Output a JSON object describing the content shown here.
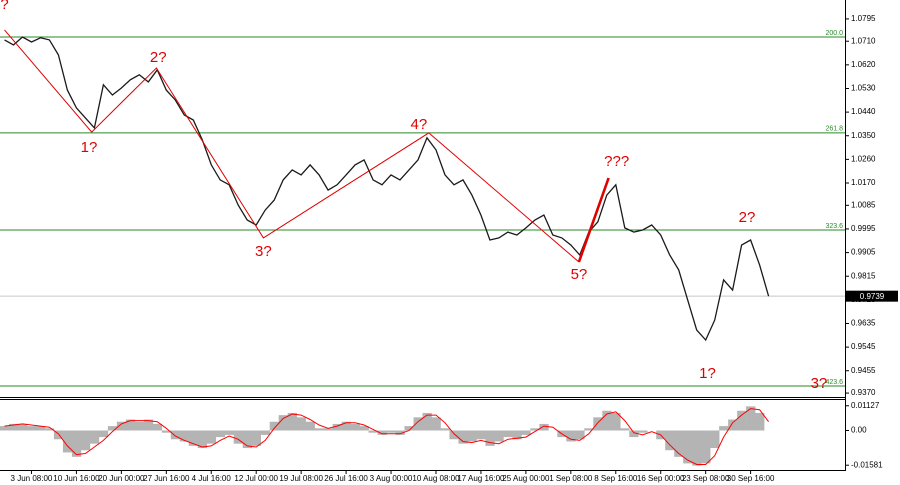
{
  "chart_data": [
    {
      "type": "line",
      "color": "#1a1a1a",
      "categories": [
        null,
        null,
        null,
        "3 Jun 08:00",
        null,
        null,
        null,
        null,
        "10 Jun 16:00",
        null,
        null,
        null,
        null,
        "20 Jun 00:00",
        null,
        null,
        null,
        null,
        "27 Jun 16:00",
        null,
        null,
        null,
        null,
        "4 Jul 16:00",
        null,
        null,
        null,
        null,
        "12 Jul 00:00",
        null,
        null,
        null,
        null,
        "19 Jul 08:00",
        null,
        null,
        null,
        null,
        "26 Jul 16:00",
        null,
        null,
        null,
        null,
        "3 Aug 00:00",
        null,
        null,
        null,
        null,
        "10 Aug 08:00",
        null,
        null,
        null,
        null,
        "17 Aug 16:00",
        null,
        null,
        null,
        null,
        "25 Aug 00:00",
        null,
        null,
        null,
        null,
        "1 Sep 08:00",
        null,
        null,
        null,
        null,
        "8 Sep 16:00",
        null,
        null,
        null,
        null,
        "16 Sep 00:00",
        null,
        null,
        null,
        null,
        "23 Sep 08:00",
        null,
        null,
        null,
        null,
        "30 Sep 16:00",
        null,
        null
      ],
      "values": [
        1.0715,
        1.0696,
        1.0726,
        1.0707,
        1.0723,
        1.0715,
        1.0658,
        1.0524,
        1.0456,
        1.0418,
        1.038,
        1.0544,
        1.0505,
        1.0532,
        1.0563,
        1.0582,
        1.0555,
        1.0601,
        1.0524,
        1.0486,
        1.0429,
        1.041,
        1.0334,
        1.0239,
        1.0182,
        1.0163,
        1.0086,
        1.0029,
        1.001,
        1.0067,
        1.0105,
        1.0182,
        1.022,
        1.0201,
        1.0239,
        1.0201,
        1.0143,
        1.0163,
        1.0201,
        1.0239,
        1.0258,
        1.0182,
        1.0163,
        1.0201,
        1.0182,
        1.022,
        1.0258,
        1.0342,
        1.0296,
        1.0201,
        1.0163,
        1.0182,
        1.0124,
        1.0048,
        0.9953,
        0.9961,
        0.9983,
        0.9972,
        0.9999,
        1.0029,
        1.0048,
        0.9972,
        0.9961,
        0.9934,
        0.9896,
        0.9983,
        1.0022,
        1.0124,
        1.0163,
        0.9999,
        0.9983,
        0.9991,
        1.001,
        0.9972,
        0.9896,
        0.9839,
        0.9724,
        0.961,
        0.9572,
        0.9648,
        0.9801,
        0.9762,
        0.9934,
        0.9953,
        0.9858,
        0.9739
      ],
      "xlim": [
        -0.5,
        93.5
      ],
      "ylim": [
        0.9355,
        1.0867
      ],
      "yticks": [
        1.0795,
        {
          "value": 1.071,
          "label": "1.0710"
        },
        {
          "value": 1.062,
          "label": "1.0620"
        },
        {
          "value": 1.053,
          "label": "1.0530"
        },
        {
          "value": 1.044,
          "label": "1.0440"
        },
        {
          "value": 1.035,
          "label": "1.0350"
        },
        {
          "value": 1.026,
          "label": "1.0260"
        },
        {
          "value": 1.017,
          "label": "1.0170"
        },
        1.0085,
        0.9995,
        0.9905,
        0.9815,
        0.9725,
        0.9635,
        0.9545,
        0.9455,
        {
          "value": 0.937,
          "label": "0.9370"
        }
      ],
      "current_price": 0.9739,
      "levels": [
        {
          "label": "200.0",
          "value": 1.0726
        },
        {
          "label": "261.8",
          "value": 1.0361
        },
        {
          "label": "323.6",
          "value": 0.9991
        },
        {
          "label": "423.6",
          "value": 0.9397
        }
      ],
      "level_color": "#2a8a2a",
      "wave_color": "#e00000",
      "wave_line": {
        "x": [
          0,
          9.7,
          16.9,
          28.8,
          47.2,
          63.9
        ],
        "y": [
          1.0753,
          1.0364,
          1.0608,
          0.9961,
          1.0361,
          0.9869
        ]
      },
      "impulse_line": {
        "x": [
          63.9,
          67.2
        ],
        "y": [
          0.9869,
          1.0189
        ]
      },
      "annotations": [
        {
          "text": "?",
          "x": 0,
          "y": 1.0848
        },
        {
          "text": "1?",
          "x": 9.4,
          "y": 1.0303
        },
        {
          "text": "2?",
          "x": 17.1,
          "y": 1.0646
        },
        {
          "text": "3?",
          "x": 28.8,
          "y": 0.9907
        },
        {
          "text": "4?",
          "x": 46.1,
          "y": 1.0391
        },
        {
          "text": "5?",
          "x": 63.9,
          "y": 0.982
        },
        {
          "text": "???",
          "x": 68.1,
          "y": 1.025
        },
        {
          "text": "2?",
          "x": 82.6,
          "y": 1.0037
        },
        {
          "text": "1?",
          "x": 78.2,
          "y": 0.9442
        },
        {
          "text": "3?",
          "x": 90.6,
          "y": 0.9404
        }
      ]
    },
    {
      "type": "bar",
      "color": "#b4b4b4",
      "values": [
        0.002,
        0.003,
        0.003,
        0.002,
        0.002,
        0.001,
        -0.004,
        -0.01,
        -0.012,
        -0.009,
        -0.006,
        -0.003,
        0.002,
        0.004,
        0.005,
        0.004,
        0.005,
        0.003,
        -0.001,
        -0.004,
        -0.005,
        -0.007,
        -0.008,
        -0.006,
        -0.003,
        -0.002,
        -0.006,
        -0.008,
        -0.007,
        -0.002,
        0.004,
        0.007,
        0.008,
        0.006,
        0.004,
        0.001,
        0.001,
        0.003,
        0.004,
        0.003,
        0.002,
        -0.001,
        -0.002,
        -0.001,
        -0.002,
        0.002,
        0.006,
        0.008,
        0.006,
        0.001,
        -0.004,
        -0.006,
        -0.005,
        -0.004,
        -0.007,
        -0.005,
        -0.003,
        -0.004,
        -0.002,
        0.001,
        0.003,
        0,
        -0.003,
        -0.005,
        -0.004,
        0.001,
        0.006,
        0.009,
        0.008,
        0.001,
        -0.003,
        -0.001,
        0,
        -0.004,
        -0.009,
        -0.012,
        -0.015,
        -0.016,
        -0.015,
        -0.008,
        0.002,
        0.005,
        0.009,
        0.011,
        0.008,
        0
      ],
      "signal": {
        "color": "#ff0000",
        "values": [
          0.002,
          0.0025,
          0.003,
          0.0025,
          0.002,
          0.0015,
          -0.0015,
          -0.007,
          -0.011,
          -0.0105,
          -0.0075,
          -0.0045,
          -0.0005,
          0.003,
          0.0045,
          0.0045,
          0.0045,
          0.004,
          0.001,
          -0.0025,
          -0.0045,
          -0.006,
          -0.0075,
          -0.007,
          -0.0045,
          -0.0025,
          -0.004,
          -0.007,
          -0.0075,
          -0.0045,
          0.001,
          0.0055,
          0.0075,
          0.007,
          0.005,
          0.0025,
          0.001,
          0.002,
          0.0035,
          0.0035,
          0.0025,
          0.0005,
          -0.0015,
          -0.0015,
          -0.0015,
          0,
          0.004,
          0.007,
          0.007,
          0.0035,
          -0.0015,
          -0.005,
          -0.0055,
          -0.0045,
          -0.0055,
          -0.006,
          -0.004,
          -0.0035,
          -0.003,
          -0.0005,
          0.002,
          0.0015,
          -0.0015,
          -0.004,
          -0.0045,
          -0.0015,
          0.0035,
          0.0075,
          0.0085,
          0.0045,
          -0.001,
          -0.002,
          -0.0005,
          -0.002,
          -0.0065,
          -0.0105,
          -0.0135,
          -0.0155,
          -0.0155,
          -0.0115,
          -0.003,
          0.0035,
          0.007,
          0.01,
          0.0095,
          0.004
        ]
      },
      "xlim": [
        -0.5,
        93.5
      ],
      "ylim": [
        -0.018,
        0.0139
      ],
      "yticks": [
        0.01127,
        {
          "value": 0,
          "label": "0.00"
        },
        -0.01581
      ]
    }
  ]
}
